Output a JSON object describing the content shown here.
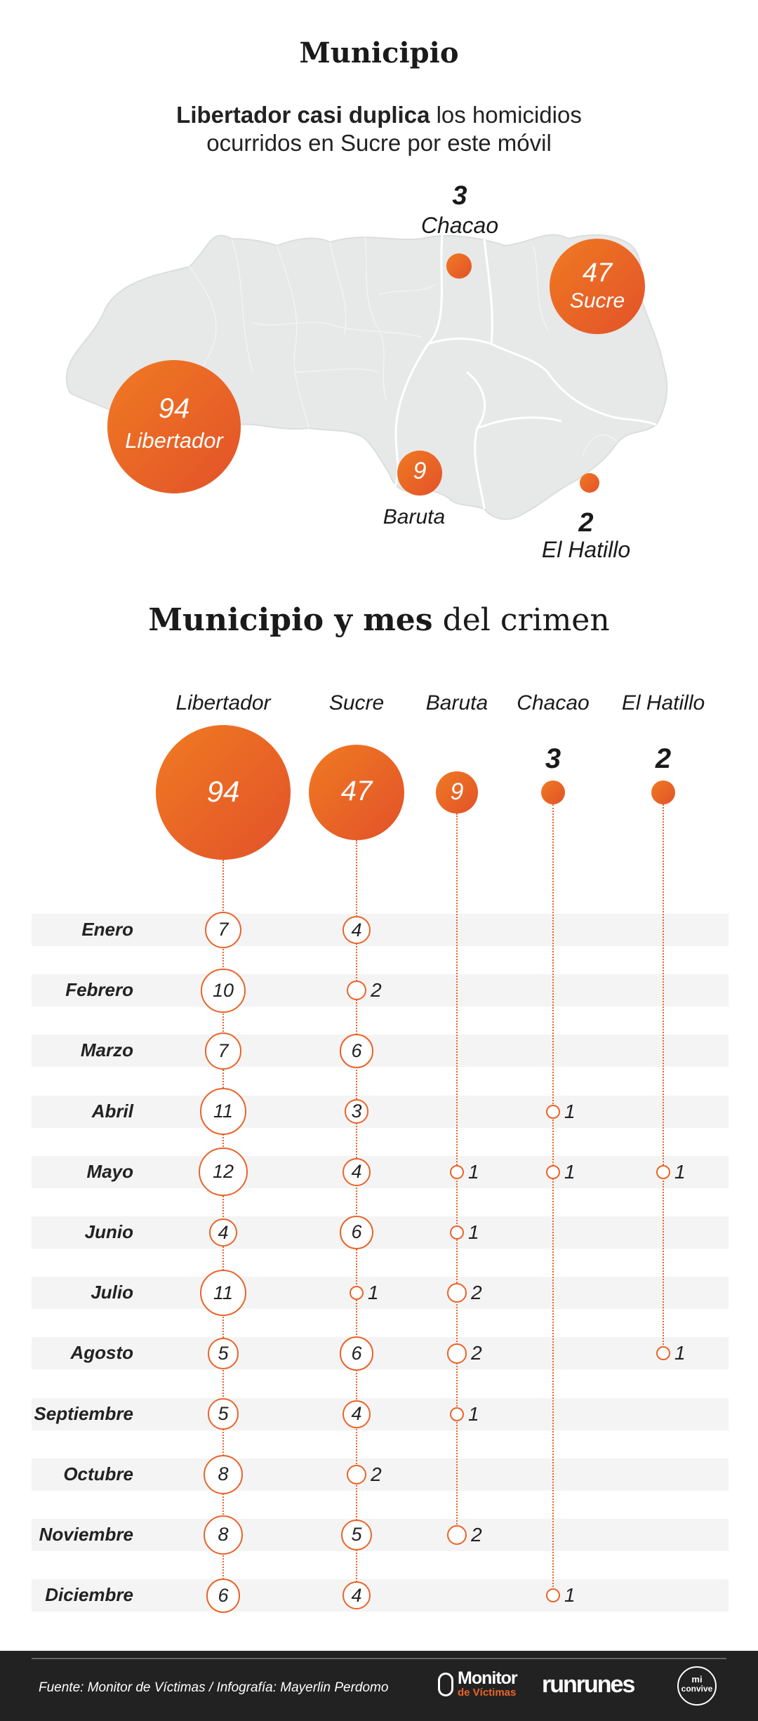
{
  "header": {
    "title": "Municipio",
    "subtitle_bold": "Libertador casi duplica",
    "subtitle_line1_rest": " los homicidios",
    "subtitle_line2": "ocurridos en Sucre por este móvil"
  },
  "map": {
    "municipalities": [
      {
        "name": "Libertador",
        "value": "94"
      },
      {
        "name": "Sucre",
        "value": "47"
      },
      {
        "name": "Baruta",
        "value": "9"
      },
      {
        "name": "Chacao",
        "value": "3"
      },
      {
        "name": "El Hatillo",
        "value": "2"
      }
    ]
  },
  "section2": {
    "title_bold": "Municipio y mes",
    "title_rest": " del crimen"
  },
  "chart_data": {
    "type": "bubble-matrix",
    "title": "Municipio y mes del crimen",
    "series": [
      {
        "name": "Libertador",
        "total": 94,
        "values": [
          7,
          10,
          7,
          11,
          12,
          4,
          11,
          5,
          5,
          8,
          8,
          6
        ]
      },
      {
        "name": "Sucre",
        "total": 47,
        "values": [
          4,
          2,
          6,
          3,
          4,
          6,
          1,
          6,
          4,
          2,
          5,
          4
        ]
      },
      {
        "name": "Baruta",
        "total": 9,
        "values": [
          null,
          null,
          null,
          null,
          1,
          1,
          2,
          2,
          1,
          null,
          2,
          null
        ]
      },
      {
        "name": "Chacao",
        "total": 3,
        "values": [
          null,
          null,
          null,
          1,
          1,
          null,
          null,
          null,
          null,
          null,
          null,
          1
        ]
      },
      {
        "name": "El Hatillo",
        "total": 2,
        "values": [
          null,
          null,
          null,
          null,
          1,
          null,
          null,
          1,
          null,
          null,
          null,
          null
        ]
      }
    ],
    "categories": [
      "Enero",
      "Febrero",
      "Marzo",
      "Abril",
      "Mayo",
      "Junio",
      "Julio",
      "Agosto",
      "Septiembre",
      "Octubre",
      "Noviembre",
      "Diciembre"
    ]
  },
  "colors": {
    "accent": "#e9642a",
    "accent_light": "#f07a22",
    "footer_bg": "#222222"
  },
  "footer": {
    "source": "Fuente: Monitor de Víctimas / Infografía: Mayerlin Perdomo",
    "logo1_line1": "Monitor",
    "logo1_line2": "de Víctimas",
    "logo2": "runrunes",
    "logo3_line1": "mi",
    "logo3_line2": "convive"
  }
}
